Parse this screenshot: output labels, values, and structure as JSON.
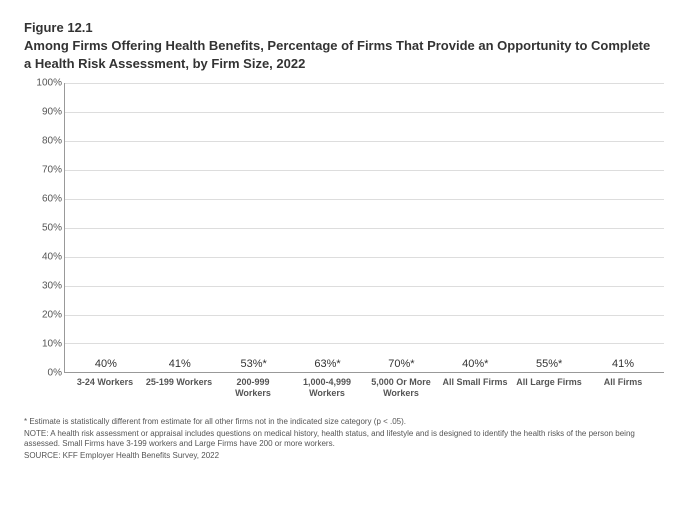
{
  "figure_number": "Figure 12.1",
  "figure_title": "Among Firms Offering Health Benefits, Percentage of Firms That Provide an Opportunity to Complete a Health Risk Assessment, by Firm Size, 2022",
  "chart": {
    "type": "bar",
    "ylim": [
      0,
      100
    ],
    "ytick_step": 10,
    "y_suffix": "%",
    "background_color": "#ffffff",
    "grid_color": "#dddddd",
    "axis_color": "#999999",
    "label_fontsize": 10,
    "datalabel_fontsize": 11,
    "xlabel_fontsize": 9,
    "bars": [
      {
        "category": "3-24 Workers",
        "value": 40,
        "label": "40%",
        "color": "#18355e"
      },
      {
        "category": "25-199 Workers",
        "value": 41,
        "label": "41%",
        "color": "#18355e"
      },
      {
        "category": "200-999 Workers",
        "value": 53,
        "label": "53%*",
        "color": "#18355e"
      },
      {
        "category": "1,000-4,999 Workers",
        "value": 63,
        "label": "63%*",
        "color": "#18355e"
      },
      {
        "category": "5,000 Or More Workers",
        "value": 70,
        "label": "70%*",
        "color": "#18355e"
      },
      {
        "category": "All Small Firms",
        "value": 40,
        "label": "40%*",
        "color": "#35a0e8"
      },
      {
        "category": "All Large Firms",
        "value": 55,
        "label": "55%*",
        "color": "#35a0e8"
      },
      {
        "category": "All Firms",
        "value": 41,
        "label": "41%",
        "color": "#f7941d"
      }
    ]
  },
  "footnotes": {
    "line1": "* Estimate is statistically different from estimate for all other firms not in the indicated size category (p < .05).",
    "line2": "NOTE: A health risk assessment or appraisal includes questions on medical history, health status, and lifestyle and is designed to identify the health risks of the person being assessed. Small Firms have 3-199 workers and Large Firms have 200 or more workers.",
    "line3": "SOURCE: KFF Employer Health Benefits Survey, 2022"
  }
}
